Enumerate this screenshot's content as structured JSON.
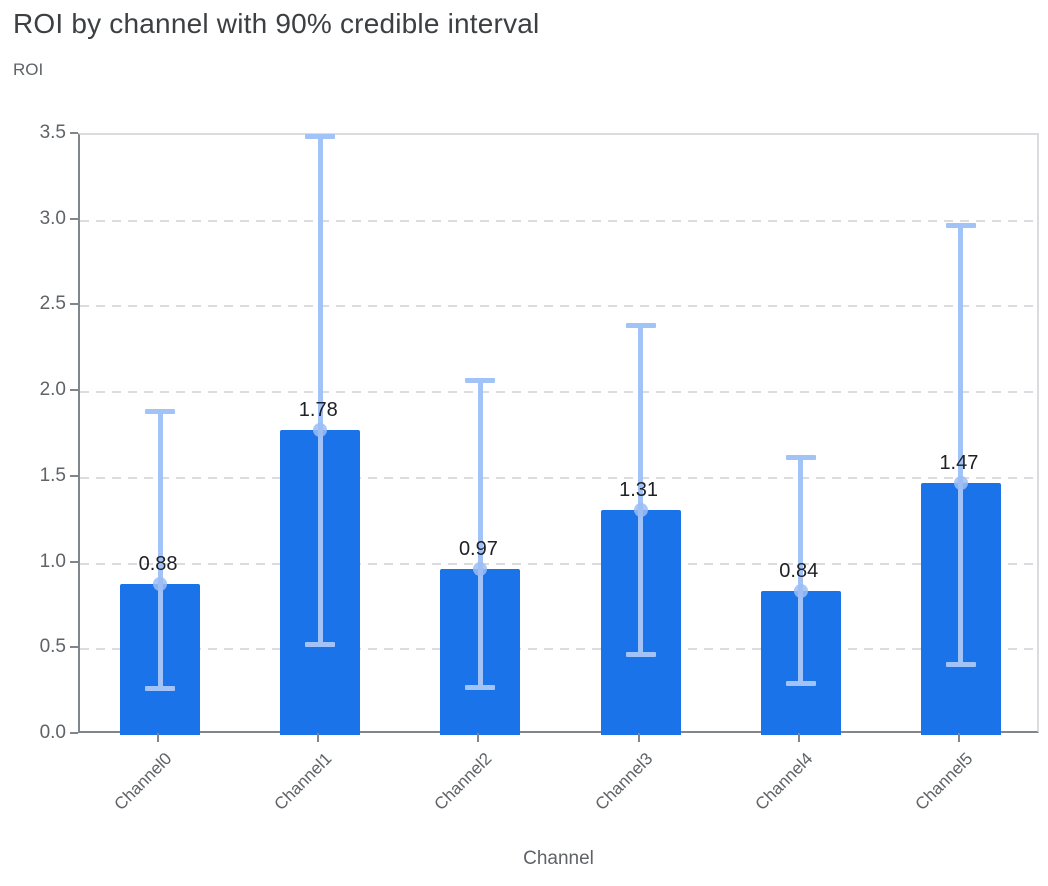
{
  "header": {
    "title": "ROI by channel with 90% credible interval"
  },
  "chart_data": {
    "type": "bar",
    "title": "ROI by channel with 90% credible interval",
    "ylabel": "ROI",
    "xlabel": "Channel",
    "categories": [
      "Channel0",
      "Channel1",
      "Channel2",
      "Channel3",
      "Channel4",
      "Channel5"
    ],
    "series": [
      {
        "name": "ROI",
        "values": [
          0.88,
          1.78,
          0.97,
          1.31,
          0.84,
          1.47
        ]
      }
    ],
    "value_labels": [
      "0.88",
      "1.78",
      "0.97",
      "1.31",
      "0.84",
      "1.47"
    ],
    "error_bars": {
      "label": "90% credible interval",
      "low": [
        0.27,
        0.53,
        0.28,
        0.47,
        0.3,
        0.41
      ],
      "high": [
        1.89,
        3.49,
        2.07,
        2.39,
        1.62,
        2.97
      ]
    },
    "ylim": [
      0,
      3.5
    ],
    "y_ticks": [
      "0.0",
      "0.5",
      "1.0",
      "1.5",
      "2.0",
      "2.5",
      "3.0",
      "3.5"
    ],
    "grid": "horizontal-dashed",
    "legend": "none",
    "colors": {
      "bar": "#1a73e8",
      "error_bar": "#a2c3f8",
      "error_dot": "#9cbdf5",
      "gridline": "#dadce0",
      "axis_line": "#80868b",
      "title_text": "#3c4043",
      "axis_text": "#5f6368",
      "value_label_text": "#202124"
    }
  }
}
